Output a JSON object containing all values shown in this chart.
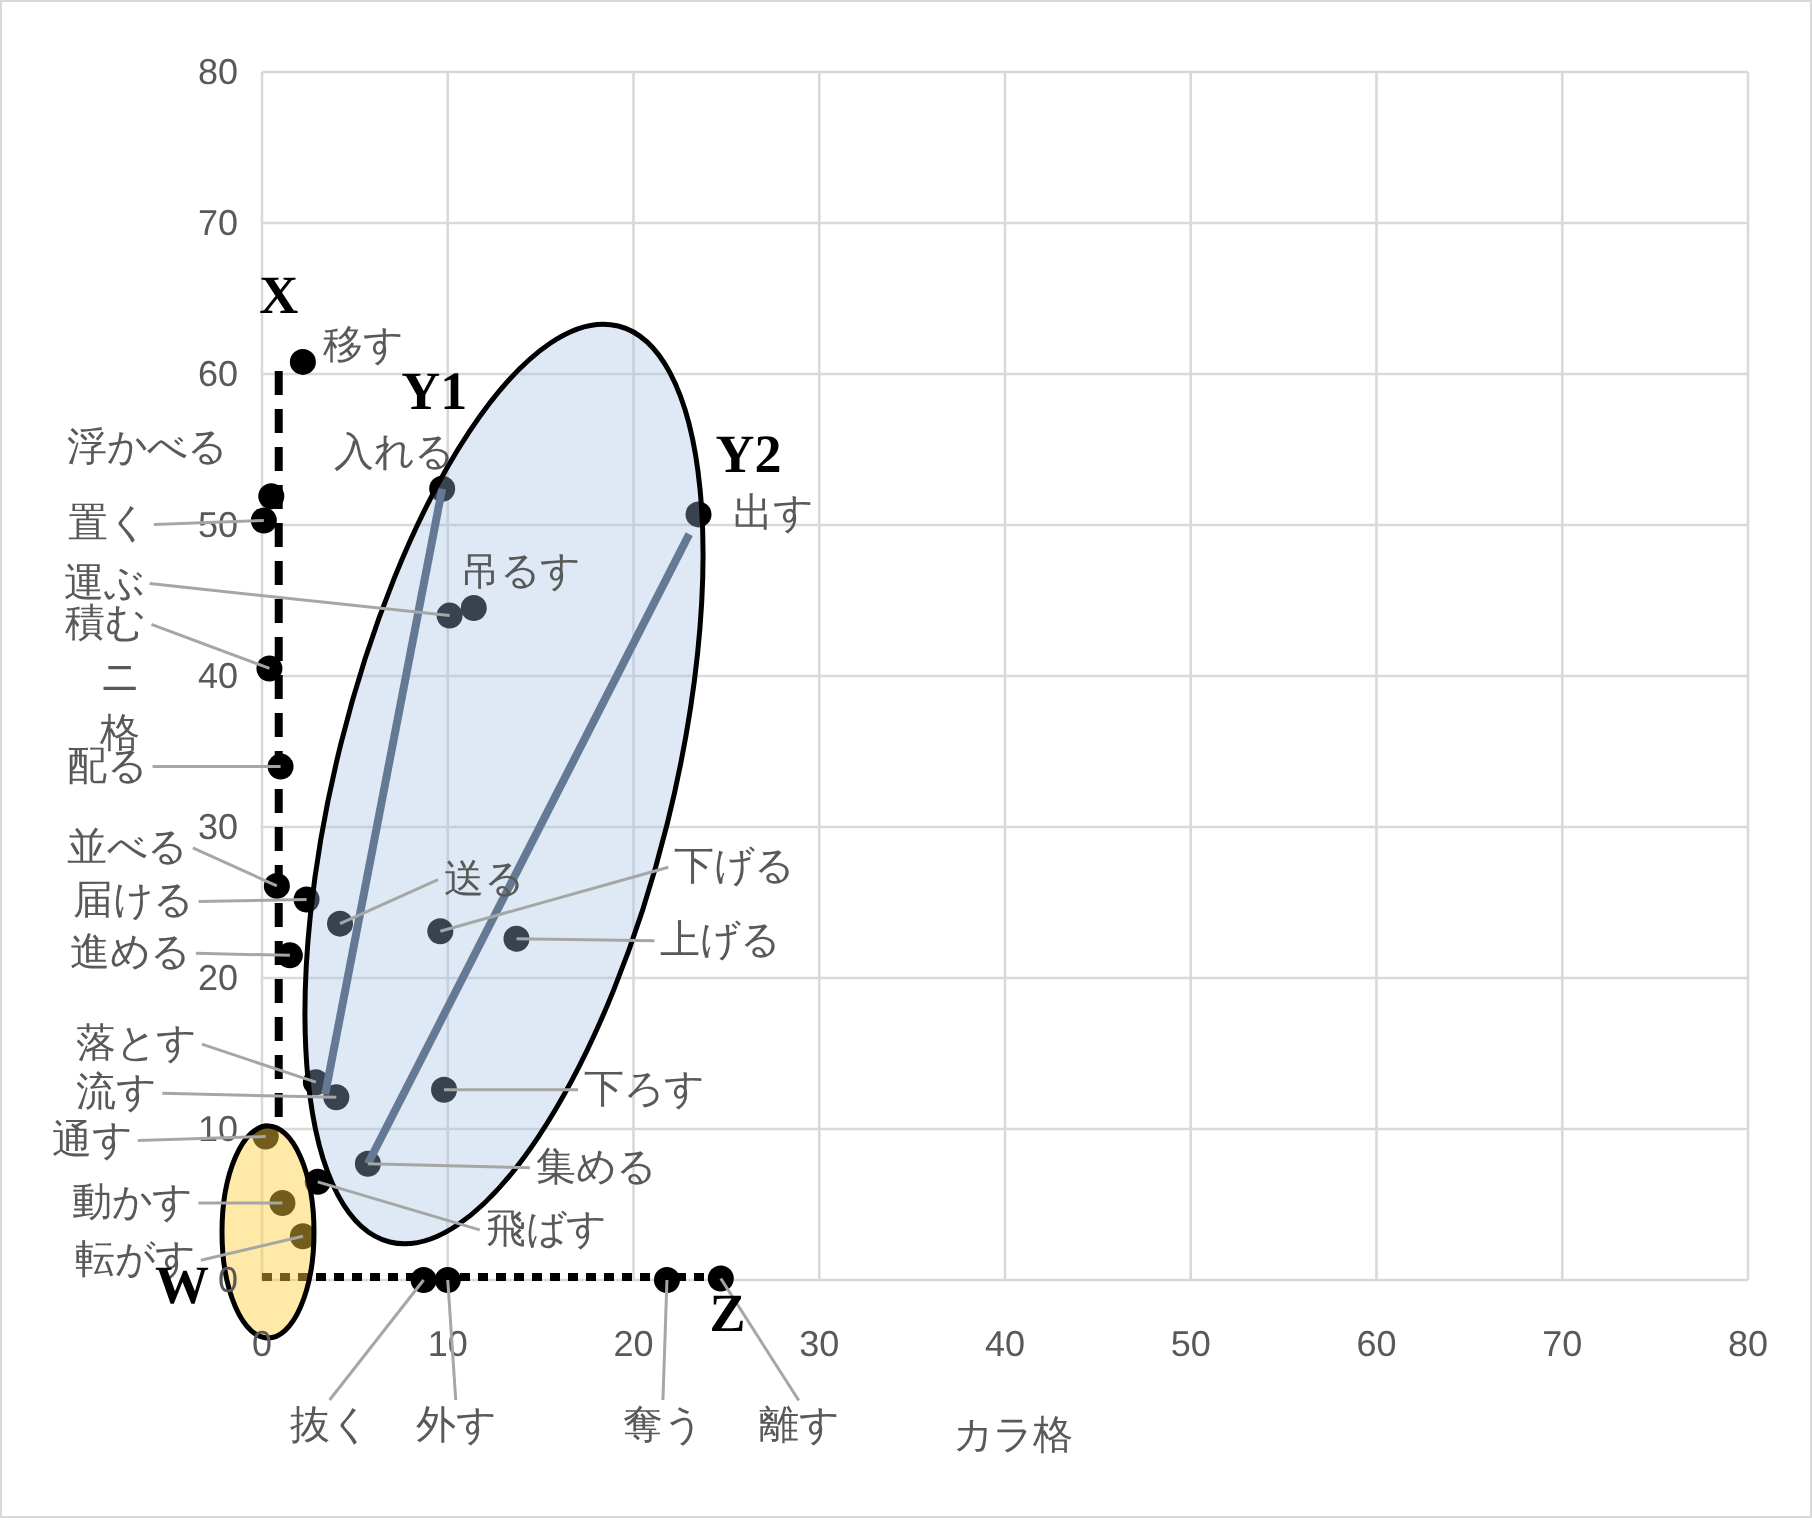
{
  "chart_data": {
    "type": "scatter",
    "xlabel": "カラ格",
    "ylabel": "ニ格",
    "xlim": [
      0,
      80
    ],
    "ylim": [
      0,
      80
    ],
    "xticks": [
      0,
      10,
      20,
      30,
      40,
      50,
      60,
      70,
      80
    ],
    "yticks": [
      0,
      10,
      20,
      30,
      40,
      50,
      60,
      70,
      80
    ],
    "grid": true,
    "marker": "circle",
    "series": [
      {
        "type": "scatter",
        "color": "#000000",
        "x": [
          2.2,
          0.5,
          0.1,
          9.7,
          23.5,
          10.1,
          11.4,
          0.4,
          1.0,
          0.8,
          2.4,
          4.2,
          9.6,
          13.7,
          1.5,
          2.9,
          4.0,
          9.8,
          0.2,
          5.7,
          3.0,
          1.1,
          2.2,
          8.7,
          10.0,
          21.8,
          24.7
        ],
        "values": [
          60.8,
          51.9,
          50.3,
          52.4,
          50.7,
          44.0,
          44.5,
          40.5,
          34.0,
          26.1,
          25.2,
          23.6,
          23.1,
          22.6,
          21.5,
          13.1,
          12.1,
          12.6,
          9.5,
          7.7,
          6.5,
          5.1,
          2.9,
          0,
          0,
          0,
          0.1
        ]
      },
      {
        "type": "line",
        "color": "#000000",
        "line_style": "dashed",
        "marker": "none",
        "x": [
          0.9,
          0.9
        ],
        "values": [
          60.2,
          10
        ]
      },
      {
        "type": "line",
        "color": "#44546a",
        "line_style": "solid",
        "marker": "none",
        "x": [
          3.4,
          9.7
        ],
        "values": [
          12.3,
          52.4
        ]
      },
      {
        "type": "line",
        "color": "#44546a",
        "line_style": "solid",
        "marker": "none",
        "x": [
          5.7,
          23.0
        ],
        "values": [
          7.7,
          49.4
        ]
      },
      {
        "type": "line",
        "color": "#000000",
        "line_style": "dotted",
        "marker": "none",
        "x": [
          0,
          24.2
        ],
        "values": [
          0.2,
          0.2
        ]
      }
    ],
    "annotations": [
      {
        "text": "移す",
        "x": 2.2,
        "y": 60.8
      },
      {
        "text": "浮かべる",
        "x": 0.5,
        "y": 51.9
      },
      {
        "text": "置く",
        "x": 0.1,
        "y": 50.3
      },
      {
        "text": "入れる",
        "x": 9.7,
        "y": 52.4
      },
      {
        "text": "出す",
        "x": 23.5,
        "y": 50.7
      },
      {
        "text": "運ぶ",
        "x": 10.1,
        "y": 44.0
      },
      {
        "text": "吊るす",
        "x": 11.4,
        "y": 44.5
      },
      {
        "text": "積む",
        "x": 0.4,
        "y": 40.5
      },
      {
        "text": "配る",
        "x": 1.0,
        "y": 34.0
      },
      {
        "text": "並べる",
        "x": 0.8,
        "y": 26.1
      },
      {
        "text": "届ける",
        "x": 2.4,
        "y": 25.2
      },
      {
        "text": "送る",
        "x": 4.2,
        "y": 23.6
      },
      {
        "text": "下げる",
        "x": 9.6,
        "y": 23.1
      },
      {
        "text": "上げる",
        "x": 13.7,
        "y": 22.6
      },
      {
        "text": "進める",
        "x": 1.5,
        "y": 21.5
      },
      {
        "text": "落とす",
        "x": 2.9,
        "y": 13.1
      },
      {
        "text": "流す",
        "x": 4.0,
        "y": 12.1
      },
      {
        "text": "下ろす",
        "x": 9.8,
        "y": 12.6
      },
      {
        "text": "通す",
        "x": 0.2,
        "y": 9.5
      },
      {
        "text": "集める",
        "x": 5.7,
        "y": 7.7
      },
      {
        "text": "飛ばす",
        "x": 3.0,
        "y": 6.5
      },
      {
        "text": "動かす",
        "x": 1.1,
        "y": 5.1
      },
      {
        "text": "転がす",
        "x": 2.2,
        "y": 2.9
      },
      {
        "text": "抜く",
        "x": 8.7,
        "y": 0
      },
      {
        "text": "外す",
        "x": 10.0,
        "y": 0
      },
      {
        "text": "奪う",
        "x": 21.8,
        "y": 0
      },
      {
        "text": "離す",
        "x": 24.7,
        "y": 0.1
      },
      {
        "text": "X",
        "x": 0.9,
        "y": 60.2
      },
      {
        "text": "Y1",
        "x": 9.7,
        "y": 52.4
      },
      {
        "text": "Y2",
        "x": 23.5,
        "y": 50.7
      },
      {
        "text": "W",
        "x": 0,
        "y": 0.2
      },
      {
        "text": "Z",
        "x": 24.2,
        "y": 0.2
      }
    ]
  }
}
